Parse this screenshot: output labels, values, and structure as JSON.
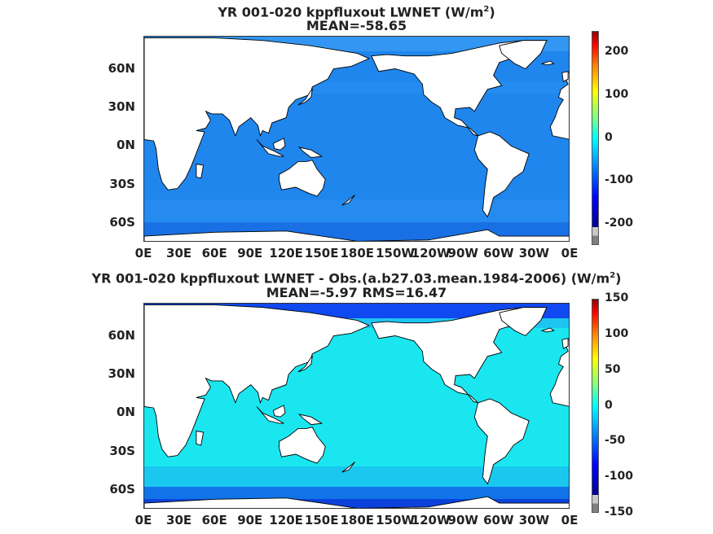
{
  "panels": [
    {
      "title_line1": "YR 001-020 kppfluxout  LWNET (W/m",
      "title_sup": "2",
      "title_close": ")",
      "title_line2": "MEAN=-58.65",
      "ocean_color": "#1f86ee",
      "colorbar_ticks": [
        "200",
        "100",
        "0",
        "-100",
        "-200"
      ]
    },
    {
      "title_line1": "YR 001-020 kppfluxout LWNET - Obs.(a.b27.03.mean.1984-2006) (W/m",
      "title_sup": "2",
      "title_close": ")",
      "title_line2": "MEAN=-5.97 RMS=16.47",
      "ocean_color": "#1ae6f0",
      "colorbar_ticks": [
        "150",
        "100",
        "50",
        "0",
        "-50",
        "-100",
        "-150"
      ]
    }
  ],
  "y_axis_labels": [
    "60N",
    "30N",
    "0N",
    "30S",
    "60S"
  ],
  "x_axis_labels": [
    "0E",
    "30E",
    "60E",
    "90E",
    "120E",
    "150E",
    "180E",
    "150W",
    "120W",
    "90W",
    "60W",
    "30W",
    "0E"
  ],
  "land_color": "#ffffff",
  "coastline_color": "#000000",
  "colormap": "jet"
}
